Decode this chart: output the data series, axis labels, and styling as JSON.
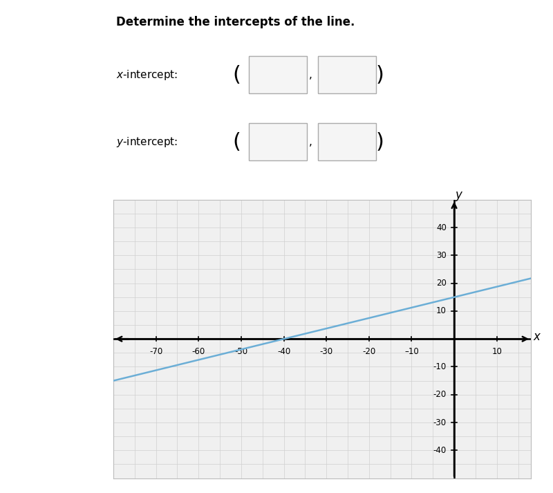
{
  "title": "Determine the intercepts of the line.",
  "line_slope": 0.375,
  "line_yintercept": 15,
  "line_color": "#6baed6",
  "line_width": 1.8,
  "xlim": [
    -80,
    18
  ],
  "ylim": [
    -50,
    50
  ],
  "x_ticks": [
    -70,
    -60,
    -50,
    -40,
    -30,
    -20,
    -10,
    10
  ],
  "y_ticks": [
    -40,
    -30,
    -20,
    -10,
    10,
    20,
    30,
    40
  ],
  "x_tick_labels": [
    "-70",
    "-60",
    "-50",
    "-40",
    "-30",
    "-20",
    "–10",
    "10"
  ],
  "y_tick_labels": [
    "-40",
    "-30",
    "-20",
    "-10",
    "10",
    "20",
    "30",
    "40"
  ],
  "grid_color": "#d0d0d0",
  "axis_color": "#000000",
  "background_color": "#ffffff",
  "graph_bg": "#f0f0f0",
  "fig_width": 8.0,
  "fig_height": 7.13
}
